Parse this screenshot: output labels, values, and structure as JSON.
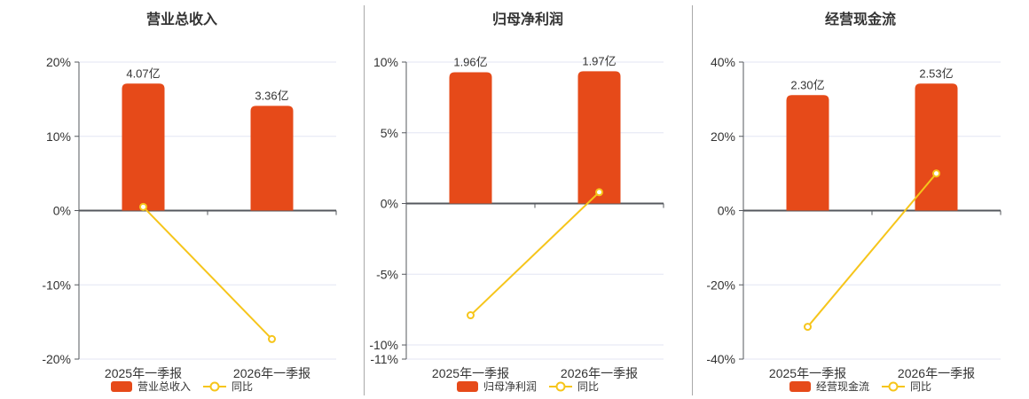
{
  "colors": {
    "bar": "#E64A19",
    "line": "#F6C51B",
    "grid": "#E3E6F3",
    "axis": "#55585E",
    "text": "#333333",
    "divider": "#A9A9A9",
    "marker_fill": "#FFFFFF",
    "background": "#FFFFFF"
  },
  "chart_data": [
    {
      "id": "revenue",
      "type": "bar+line",
      "title": "营业总收入",
      "categories": [
        "2025年一季报",
        "2026年一季报"
      ],
      "bar_series": {
        "name": "营业总收入",
        "unit": "亿",
        "values": [
          4.07,
          3.36
        ],
        "labels": [
          "4.07亿",
          "3.36亿"
        ],
        "display_pct": [
          17.1,
          14.1
        ]
      },
      "line_series": {
        "name": "同比",
        "values_pct": [
          0.5,
          -17.3
        ]
      },
      "y_axis": {
        "max": 20,
        "min": -20,
        "ticks": [
          {
            "label": "20%",
            "value": 20
          },
          {
            "label": "10%",
            "value": 10
          },
          {
            "label": "0%",
            "value": 0
          },
          {
            "label": "-10%",
            "value": -10
          },
          {
            "label": "-20%",
            "value": -20
          }
        ]
      },
      "legend": [
        "营业总收入",
        "同比"
      ]
    },
    {
      "id": "net-profit",
      "type": "bar+line",
      "title": "归母净利润",
      "categories": [
        "2025年一季报",
        "2026年一季报"
      ],
      "bar_series": {
        "name": "归母净利润",
        "unit": "亿",
        "values": [
          1.96,
          1.97
        ],
        "labels": [
          "1.96亿",
          "1.97亿"
        ],
        "display_pct": [
          9.28,
          9.35
        ]
      },
      "line_series": {
        "name": "同比",
        "values_pct": [
          -7.9,
          0.8
        ]
      },
      "y_axis": {
        "max": 10,
        "min": -11,
        "ticks": [
          {
            "label": "10%",
            "value": 10
          },
          {
            "label": "5%",
            "value": 5
          },
          {
            "label": "0%",
            "value": 0
          },
          {
            "label": "-5%",
            "value": -5
          },
          {
            "label": "-10%",
            "value": -10
          },
          {
            "label": "-11%",
            "value": -11
          }
        ]
      },
      "legend": [
        "归母净利润",
        "同比"
      ]
    },
    {
      "id": "operating-cash-flow",
      "type": "bar+line",
      "title": "经营现金流",
      "categories": [
        "2025年一季报",
        "2026年一季报"
      ],
      "bar_series": {
        "name": "经营现金流",
        "unit": "亿",
        "values": [
          2.3,
          2.53
        ],
        "labels": [
          "2.30亿",
          "2.53亿"
        ],
        "display_pct": [
          31.1,
          34.2
        ]
      },
      "line_series": {
        "name": "同比",
        "values_pct": [
          -31.3,
          10.0
        ]
      },
      "y_axis": {
        "max": 40,
        "min": -40,
        "ticks": [
          {
            "label": "40%",
            "value": 40
          },
          {
            "label": "20%",
            "value": 20
          },
          {
            "label": "0%",
            "value": 0
          },
          {
            "label": "-20%",
            "value": -20
          },
          {
            "label": "-40%",
            "value": -40
          }
        ]
      },
      "legend": [
        "经营现金流",
        "同比"
      ]
    }
  ]
}
